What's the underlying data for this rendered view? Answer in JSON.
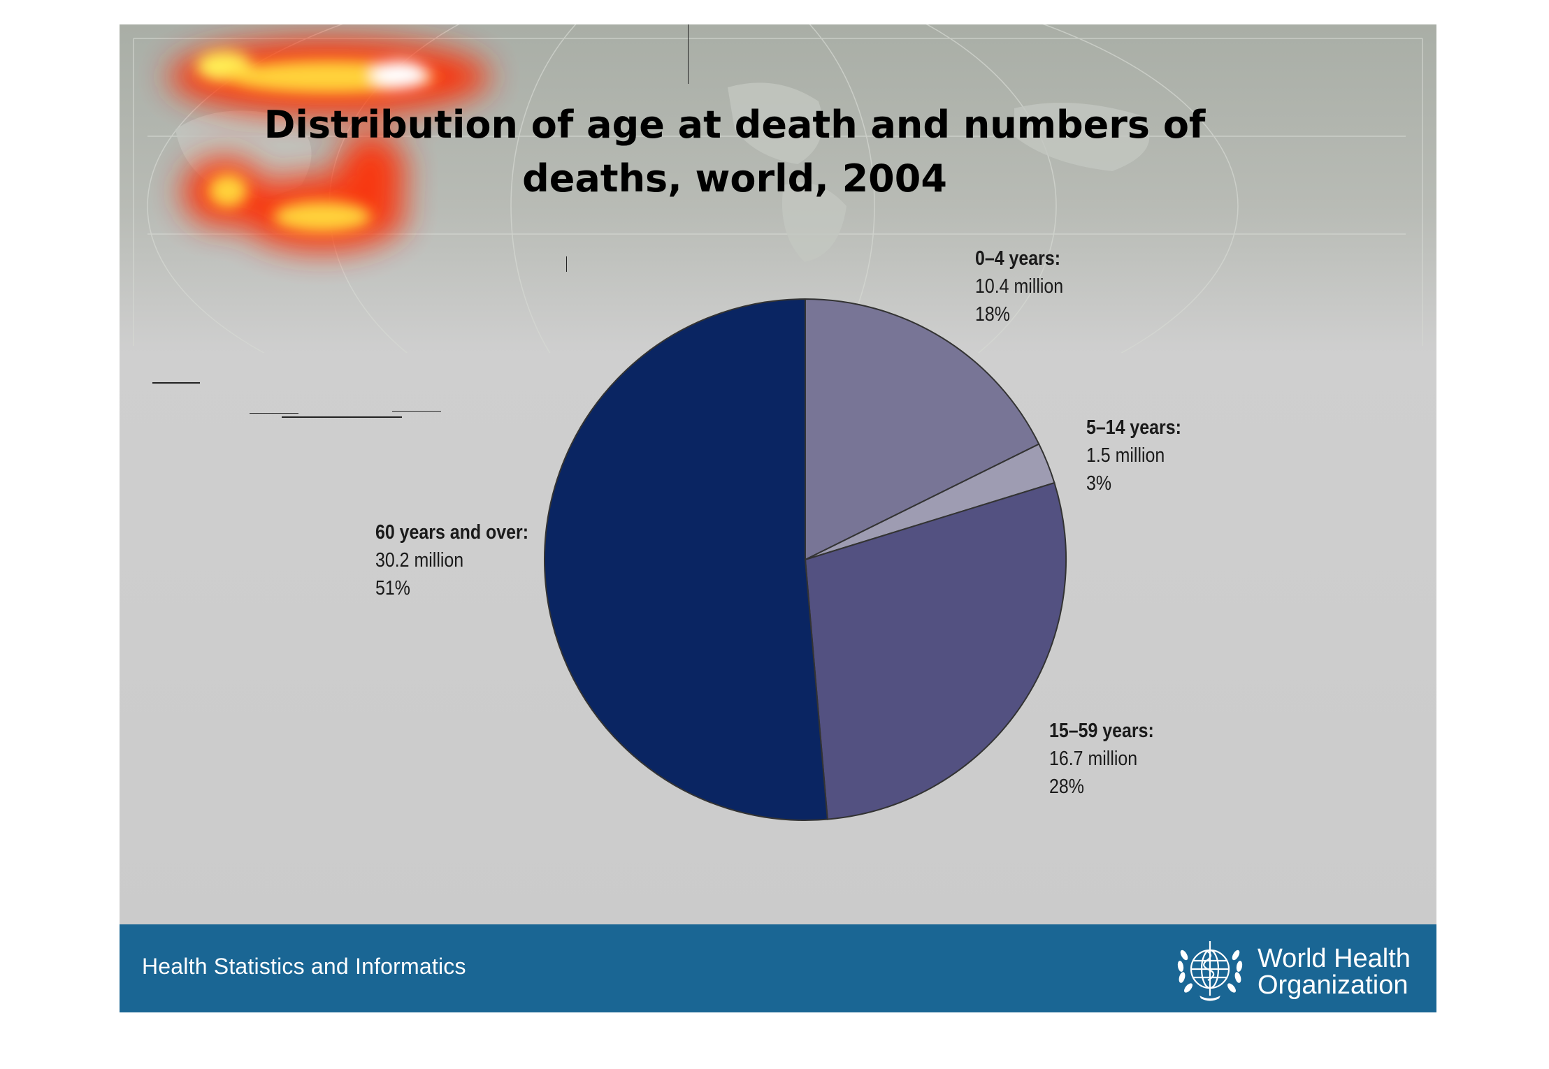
{
  "slide": {
    "title": "Distribution of age at death and numbers of deaths, world, 2004",
    "footer_label": "Health Statistics and Informatics",
    "organization_name": "World Health Organization",
    "organization_logo": "who-emblem-icon"
  },
  "chart_data": {
    "type": "pie",
    "title": "Distribution of age at death and numbers of deaths, world, 2004",
    "slices": [
      {
        "label": "0–4 years:",
        "value_text": "10.4 million",
        "percent_text": "18%",
        "value_million": 10.4,
        "percent": 18,
        "color": "#787596"
      },
      {
        "label": "5–14 years:",
        "value_text": "1.5 million",
        "percent_text": "3%",
        "value_million": 1.5,
        "percent": 3,
        "color": "#9e9cb2"
      },
      {
        "label": "15–59 years:",
        "value_text": "16.7 million",
        "percent_text": "28%",
        "value_million": 16.7,
        "percent": 28,
        "color": "#535181"
      },
      {
        "label": "60 years and over:",
        "value_text": "30.2 million",
        "percent_text": "51%",
        "value_million": 30.2,
        "percent": 51,
        "color": "#0a2562"
      }
    ],
    "start_angle": "12 o'clock",
    "direction": "clockwise",
    "legend": "none"
  },
  "colors": {
    "footer": "#1a6694",
    "slide_background": "#cbcbcb",
    "slice_border": "#333333"
  }
}
